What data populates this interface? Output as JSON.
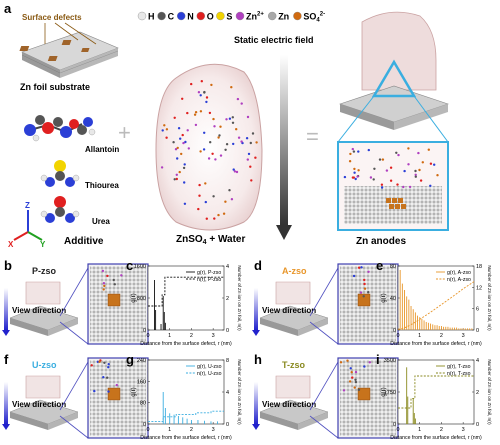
{
  "panel_letters": [
    "a",
    "b",
    "c",
    "d",
    "e",
    "f",
    "g",
    "h",
    "i"
  ],
  "panel_a": {
    "surface_defects": "Surface defects",
    "substrate": "Zn foil substrate",
    "legend": [
      {
        "symbol": "H",
        "color": "#e8e8e8"
      },
      {
        "symbol": "C",
        "color": "#555555"
      },
      {
        "symbol": "N",
        "color": "#2b3fd6"
      },
      {
        "symbol": "O",
        "color": "#e02020"
      },
      {
        "symbol": "S",
        "color": "#f2d400"
      },
      {
        "symbol": "Zn2+",
        "label": "Zn",
        "sup": "2+",
        "color": "#b040c0"
      },
      {
        "symbol": "Zn",
        "color": "#a8a8a8"
      },
      {
        "symbol": "SO42-",
        "label": "SO",
        "sub": "4",
        "sup": "2-",
        "color": "#d06a10"
      }
    ],
    "field": "Static electric field",
    "molecules": [
      "Allantoin",
      "Thiourea",
      "Urea"
    ],
    "additive": "Additive",
    "axes": {
      "z": "Z",
      "x": "X",
      "y": "Y"
    },
    "electrolyte_prefix": "ZnSO",
    "electrolyte_sub": "4",
    "electrolyte_suffix": " + Water",
    "anodes": "Zn anodes",
    "plus": "+",
    "equals": "="
  },
  "sims": [
    {
      "letter": "b",
      "label": "P-zso",
      "label_color": "#222222"
    },
    {
      "letter": "d",
      "label": "A-zso",
      "label_color": "#e8962a"
    },
    {
      "letter": "f",
      "label": "U-zso",
      "label_color": "#3aaee0"
    },
    {
      "letter": "h",
      "label": "T-zso",
      "label_color": "#8a8a20"
    }
  ],
  "view_direction": "View direction",
  "chart_data": [
    {
      "type": "line",
      "panel": "c",
      "color": "#111111",
      "ylabel_left": "g(r)",
      "ylabel_right": "Number of Zn ion on Zn foil, n(r)",
      "xlabel": "Distance from the surface defect, r (nm)",
      "legend": [
        "g(r), P-zso",
        "n(r), P-zso"
      ],
      "xlim": [
        0,
        3.5
      ],
      "xticks": [
        "0",
        "1",
        "2",
        "3"
      ],
      "ylim_left": [
        0,
        1600
      ],
      "yticks_left": [
        "0",
        "800",
        "1600"
      ],
      "ylim_right": [
        0,
        4
      ],
      "yticks_right": [
        "0",
        "2",
        "4"
      ],
      "g_peaks": [
        [
          0.3,
          1250
        ],
        [
          0.35,
          500
        ],
        [
          0.6,
          150
        ],
        [
          0.7,
          850
        ],
        [
          0.75,
          450
        ],
        [
          0.8,
          180
        ]
      ],
      "n_steps": [
        [
          0,
          1.5
        ],
        [
          0.65,
          1.5
        ],
        [
          0.65,
          2.2
        ],
        [
          0.78,
          2.2
        ],
        [
          0.78,
          3.3
        ],
        [
          3.5,
          3.3
        ]
      ]
    },
    {
      "type": "line",
      "panel": "e",
      "color": "#e8962a",
      "ylabel_left": "g(r)",
      "ylabel_right": "Number of Zn ion on Zn foil, n(r)",
      "xlabel": "Distance from the surface defect, r (nm)",
      "legend": [
        "g(r), A-zso",
        "n(r), A-zso"
      ],
      "xlim": [
        0,
        3.5
      ],
      "xticks": [
        "0",
        "1",
        "2",
        "3"
      ],
      "ylim_left": [
        0,
        80
      ],
      "yticks_left": [
        "0",
        "40",
        "80"
      ],
      "ylim_right": [
        0,
        18
      ],
      "yticks_right": [
        "0",
        "6",
        "12",
        "18"
      ],
      "g_peaks": [
        [
          0.1,
          75
        ],
        [
          0.2,
          58
        ],
        [
          0.3,
          50
        ],
        [
          0.4,
          42
        ],
        [
          0.5,
          38
        ],
        [
          0.6,
          30
        ],
        [
          0.7,
          26
        ],
        [
          0.8,
          22
        ],
        [
          0.9,
          18
        ],
        [
          1.0,
          16
        ],
        [
          1.1,
          14
        ],
        [
          1.2,
          12
        ],
        [
          1.3,
          10
        ],
        [
          1.4,
          9
        ],
        [
          1.5,
          8
        ],
        [
          1.6,
          7
        ],
        [
          1.7,
          6
        ],
        [
          1.8,
          6
        ],
        [
          1.9,
          5
        ],
        [
          2.0,
          5
        ],
        [
          2.1,
          4
        ],
        [
          2.2,
          4
        ],
        [
          2.3,
          4
        ],
        [
          2.4,
          3
        ],
        [
          2.5,
          3
        ],
        [
          2.6,
          3
        ],
        [
          2.7,
          3
        ],
        [
          2.8,
          2
        ],
        [
          2.9,
          2
        ],
        [
          3.0,
          2
        ],
        [
          3.1,
          2
        ],
        [
          3.2,
          2
        ],
        [
          3.3,
          2
        ],
        [
          3.4,
          2
        ]
      ],
      "n_steps": [
        [
          0,
          0.2
        ],
        [
          0.3,
          0.6
        ],
        [
          0.6,
          1.5
        ],
        [
          0.9,
          2.6
        ],
        [
          1.2,
          3.8
        ],
        [
          1.5,
          5.0
        ],
        [
          1.8,
          6.3
        ],
        [
          2.1,
          7.6
        ],
        [
          2.4,
          8.9
        ],
        [
          2.7,
          10.2
        ],
        [
          3.0,
          11.6
        ],
        [
          3.3,
          12.8
        ],
        [
          3.5,
          13.6
        ]
      ]
    },
    {
      "type": "line",
      "panel": "g",
      "color": "#3aaee0",
      "ylabel_left": "g(r)",
      "ylabel_right": "Number of Zn ion on Zn foil, n(r)",
      "xlabel": "Distance from the surface defect, r (nm)",
      "legend": [
        "g(r), U-zso",
        "n(r), U-zso"
      ],
      "xlim": [
        0,
        3.5
      ],
      "xticks": [
        "0",
        "1",
        "2",
        "3"
      ],
      "ylim_left": [
        0,
        240
      ],
      "yticks_left": [
        "0",
        "80",
        "160",
        "240"
      ],
      "ylim_right": [
        0,
        8
      ],
      "yticks_right": [
        "0",
        "4",
        "8"
      ],
      "g_peaks": [
        [
          0.7,
          120
        ],
        [
          0.8,
          60
        ],
        [
          1.0,
          40
        ],
        [
          1.2,
          35
        ],
        [
          1.4,
          30
        ],
        [
          1.6,
          25
        ],
        [
          1.8,
          20
        ],
        [
          2.0,
          15
        ],
        [
          2.3,
          15
        ],
        [
          2.6,
          12
        ],
        [
          2.9,
          10
        ],
        [
          3.2,
          10
        ]
      ],
      "n_steps": [
        [
          0,
          0.3
        ],
        [
          0.7,
          0.3
        ],
        [
          0.7,
          0.9
        ],
        [
          1.3,
          0.9
        ],
        [
          1.3,
          1.2
        ],
        [
          2.2,
          1.2
        ],
        [
          2.2,
          1.4
        ],
        [
          2.9,
          1.4
        ],
        [
          2.9,
          1.6
        ],
        [
          3.5,
          1.6
        ]
      ]
    },
    {
      "type": "line",
      "panel": "i",
      "color": "#8a8a20",
      "ylabel_left": "g(r)",
      "ylabel_right": "Number of Zn ion on Zn foil, n(r)",
      "xlabel": "Distance from the surface defect, r (nm)",
      "legend": [
        "g(r), T-zso",
        "n(r), T-zso"
      ],
      "xlim": [
        0,
        3.5
      ],
      "xticks": [
        "0",
        "1",
        "2",
        "3"
      ],
      "ylim_left": [
        0,
        3500
      ],
      "yticks_left": [
        "0",
        "1750",
        "3500"
      ],
      "ylim_right": [
        0,
        4
      ],
      "yticks_right": [
        "0",
        "2",
        "4"
      ],
      "g_peaks": [
        [
          0.4,
          3100
        ],
        [
          0.45,
          1500
        ],
        [
          0.7,
          1400
        ],
        [
          0.75,
          600
        ],
        [
          0.8,
          300
        ]
      ],
      "n_steps": [
        [
          0,
          1.0
        ],
        [
          0.6,
          1.0
        ],
        [
          0.6,
          1.6
        ],
        [
          0.78,
          1.6
        ],
        [
          0.78,
          3.0
        ],
        [
          3.5,
          3.0
        ]
      ]
    }
  ]
}
